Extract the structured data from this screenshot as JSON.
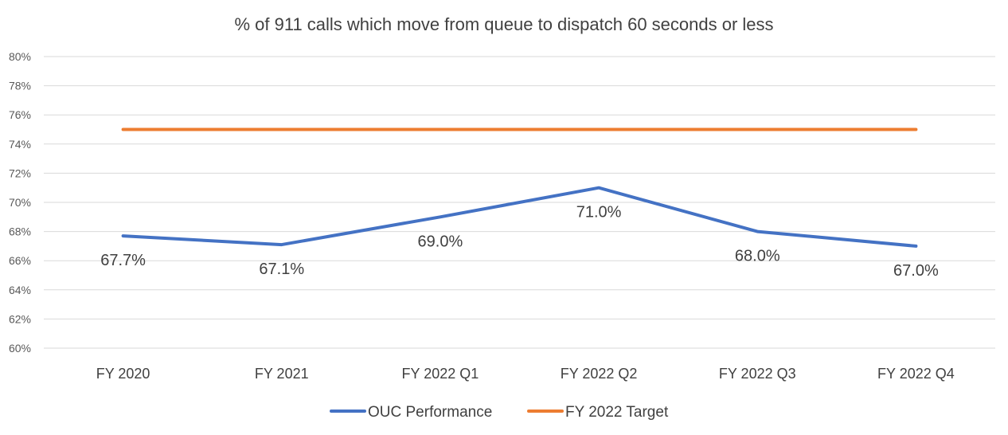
{
  "chart_data": {
    "type": "line",
    "title": "% of 911 calls which move from queue to dispatch 60 seconds or less",
    "categories": [
      "FY 2020",
      "FY 2021",
      "FY 2022 Q1",
      "FY 2022 Q2",
      "FY 2022 Q3",
      "FY 2022 Q4"
    ],
    "series": [
      {
        "name": "OUC Performance",
        "values": [
          67.7,
          67.1,
          69.0,
          71.0,
          68.0,
          67.0
        ],
        "data_labels": [
          "67.7%",
          "67.1%",
          "69.0%",
          "71.0%",
          "68.0%",
          "67.0%"
        ],
        "color": "#4472c4"
      },
      {
        "name": "FY 2022 Target",
        "values": [
          75,
          75,
          75,
          75,
          75,
          75
        ],
        "color": "#ed7d31"
      }
    ],
    "ylim": [
      60,
      80
    ],
    "yticks": [
      60,
      62,
      64,
      66,
      68,
      70,
      72,
      74,
      76,
      78,
      80
    ],
    "ytick_labels": [
      "60%",
      "62%",
      "64%",
      "66%",
      "68%",
      "70%",
      "72%",
      "74%",
      "76%",
      "78%",
      "80%"
    ],
    "xlabel": "",
    "ylabel": "",
    "grid": true,
    "legend_position": "bottom"
  }
}
